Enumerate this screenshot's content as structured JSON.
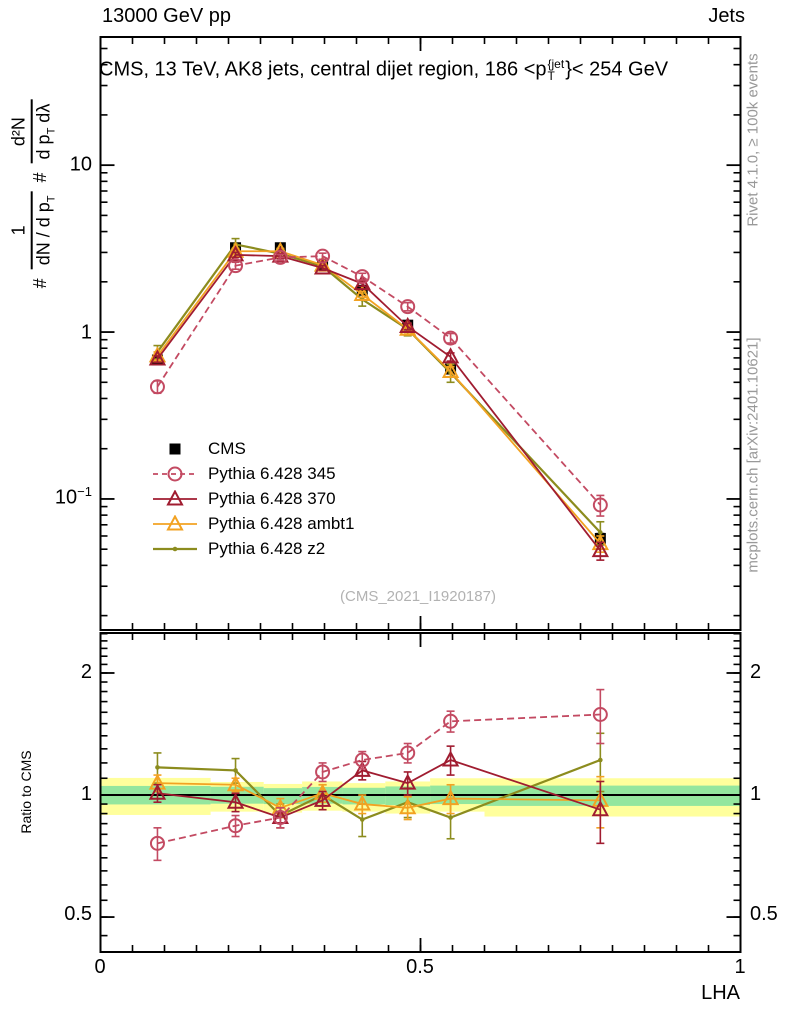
{
  "header": {
    "energy": "13000 GeV pp",
    "process": "Jets"
  },
  "title": {
    "prefix": "CMS, 13 TeV, AK8 jets, central dijet region, 186 <p",
    "sup": "{jet",
    "sub": "T",
    "suffix": "}< 254 GeV"
  },
  "ylabel": {
    "h1": "#",
    "num1": "1",
    "den1a": "dN / d p",
    "den1b": "T",
    "h2": "#",
    "num2": "d²N",
    "den2a": "d p",
    "den2b": "T",
    "den2c": " dλ"
  },
  "ratio_ylabel": "Ratio to CMS",
  "xlabel": "LHA",
  "watermark": "(CMS_2021_I1920187)",
  "side_notes": {
    "rivet": "Rivet 4.1.0, ≥ 100k events",
    "mcplots": "mcplots.cern.ch [arXiv:2401.10621]"
  },
  "colors": {
    "cms": "#000000",
    "p345": "#c34a62",
    "p370": "#a01c30",
    "ambt1": "#f2a222",
    "z2": "#8c8c1e",
    "band_yellow": "#ffff9c",
    "band_green": "#94e69e"
  },
  "legend": {
    "items": [
      {
        "series": "cms",
        "label": "CMS"
      },
      {
        "series": "p345",
        "label": "Pythia 6.428 345"
      },
      {
        "series": "p370",
        "label": "Pythia 6.428 370"
      },
      {
        "series": "ambt1",
        "label": "Pythia 6.428 ambt1"
      },
      {
        "series": "z2",
        "label": "Pythia 6.428 z2"
      }
    ]
  },
  "chart_data": {
    "type": "line",
    "title": "CMS, 13 TeV, AK8 jets, central dijet region, 186 < pT(jet) < 254 GeV",
    "xlabel": "LHA",
    "xlim": [
      0,
      1
    ],
    "x": [
      0.089,
      0.211,
      0.281,
      0.347,
      0.409,
      0.48,
      0.547,
      0.781
    ],
    "xticks": {
      "values": [
        0,
        0.5,
        1
      ],
      "labels": [
        "0",
        "0.5",
        "1"
      ]
    },
    "main_panel": {
      "ylog": true,
      "ylim": [
        0.0164,
        58.6
      ],
      "ytick_major": [
        0.1,
        1,
        10
      ],
      "ytick_labels": [
        {
          "base": "10",
          "sup": ""
        },
        {
          "base": "1",
          "sup": ""
        },
        {
          "base": "10",
          "sup": "−1"
        }
      ],
      "series": [
        {
          "id": "cms",
          "name": "CMS",
          "marker": "square",
          "line": "none",
          "values": [
            0.68,
            3.2,
            3.2,
            2.5,
            1.78,
            1.1,
            0.6,
            0.058
          ],
          "yerr": [
            0.03,
            0.1,
            0.1,
            0.08,
            0.06,
            0.04,
            0.025,
            0.004
          ]
        },
        {
          "id": "p345",
          "name": "Pythia 6.428 345",
          "marker": "circle",
          "line": "dashed",
          "values": [
            0.47,
            2.5,
            2.8,
            2.85,
            2.15,
            1.42,
            0.92,
            0.092
          ],
          "yerr": [
            0.04,
            0.12,
            0.12,
            0.12,
            0.1,
            0.08,
            0.06,
            0.013
          ]
        },
        {
          "id": "p370",
          "name": "Pythia 6.428 370",
          "marker": "triangle",
          "line": "solid",
          "values": [
            0.69,
            2.9,
            2.85,
            2.42,
            1.95,
            1.08,
            0.71,
            0.049
          ],
          "yerr": [
            0.03,
            0.1,
            0.1,
            0.08,
            0.07,
            0.05,
            0.04,
            0.006
          ]
        },
        {
          "id": "ambt1",
          "name": "Pythia 6.428 ambt1",
          "marker": "triangle",
          "line": "solid",
          "values": [
            0.72,
            3.05,
            3.05,
            2.52,
            1.68,
            1.04,
            0.58,
            0.054
          ],
          "yerr": [
            0.04,
            0.12,
            0.12,
            0.09,
            0.07,
            0.05,
            0.04,
            0.006
          ]
        },
        {
          "id": "z2",
          "name": "Pythia 6.428 z2",
          "marker": "dot",
          "line": "solid",
          "values": [
            0.76,
            3.35,
            2.95,
            2.48,
            1.57,
            1.04,
            0.57,
            0.063
          ],
          "yerr": [
            0.07,
            0.28,
            0.2,
            0.15,
            0.14,
            0.09,
            0.07,
            0.01
          ]
        }
      ]
    },
    "ratio_panel": {
      "ylog": true,
      "ylim": [
        0.41,
        2.51
      ],
      "ytick_major": [
        0.5,
        1,
        2
      ],
      "ytick_labels": [
        "2",
        "1",
        "0.5"
      ],
      "reference": 1.0,
      "bands": [
        {
          "x0": 0.0,
          "x1": 0.172,
          "ylo": 0.893,
          "yhi": 1.102,
          "glo": 0.948,
          "ghi": 1.053
        },
        {
          "x0": 0.172,
          "x1": 0.255,
          "ylo": 0.91,
          "yhi": 1.077,
          "glo": 0.952,
          "ghi": 1.048
        },
        {
          "x0": 0.255,
          "x1": 0.315,
          "ylo": 0.905,
          "yhi": 1.065,
          "glo": 0.95,
          "ghi": 1.04
        },
        {
          "x0": 0.315,
          "x1": 0.378,
          "ylo": 0.915,
          "yhi": 1.08,
          "glo": 0.952,
          "ghi": 1.047
        },
        {
          "x0": 0.378,
          "x1": 0.445,
          "ylo": 0.91,
          "yhi": 1.07,
          "glo": 0.948,
          "ghi": 1.042
        },
        {
          "x0": 0.445,
          "x1": 0.515,
          "ylo": 0.9,
          "yhi": 1.08,
          "glo": 0.945,
          "ghi": 1.05
        },
        {
          "x0": 0.515,
          "x1": 0.6,
          "ylo": 0.91,
          "yhi": 1.1,
          "glo": 0.95,
          "ghi": 1.055
        },
        {
          "x0": 0.6,
          "x1": 1.0,
          "ylo": 0.885,
          "yhi": 1.1,
          "glo": 0.94,
          "ghi": 1.055
        }
      ],
      "series": [
        {
          "id": "p345",
          "name": "Pythia 6.428 345",
          "marker": "circle",
          "line": "dashed",
          "values": [
            0.76,
            0.84,
            0.88,
            1.14,
            1.22,
            1.27,
            1.52,
            1.58
          ],
          "yerr": [
            0.07,
            0.05,
            0.05,
            0.06,
            0.06,
            0.07,
            0.09,
            0.24
          ]
        },
        {
          "id": "p370",
          "name": "Pythia 6.428 370",
          "marker": "triangle",
          "line": "solid",
          "values": [
            1.01,
            0.96,
            0.88,
            0.97,
            1.15,
            1.07,
            1.22,
            0.92
          ],
          "yerr": [
            0.05,
            0.05,
            0.05,
            0.05,
            0.06,
            0.07,
            0.1,
            0.16
          ]
        },
        {
          "id": "ambt1",
          "name": "Pythia 6.428 ambt1",
          "marker": "triangle",
          "line": "solid",
          "values": [
            1.07,
            1.06,
            0.93,
            1.01,
            0.95,
            0.93,
            0.98,
            0.97
          ],
          "yerr": [
            0.05,
            0.04,
            0.05,
            0.05,
            0.05,
            0.06,
            0.08,
            0.14
          ]
        },
        {
          "id": "z2",
          "name": "Pythia 6.428 z2",
          "marker": "dot",
          "line": "solid",
          "values": [
            1.17,
            1.15,
            0.89,
            1.0,
            0.87,
            0.96,
            0.88,
            1.22
          ],
          "yerr": [
            0.1,
            0.08,
            0.06,
            0.06,
            0.08,
            0.08,
            0.1,
            0.2
          ]
        }
      ]
    }
  }
}
